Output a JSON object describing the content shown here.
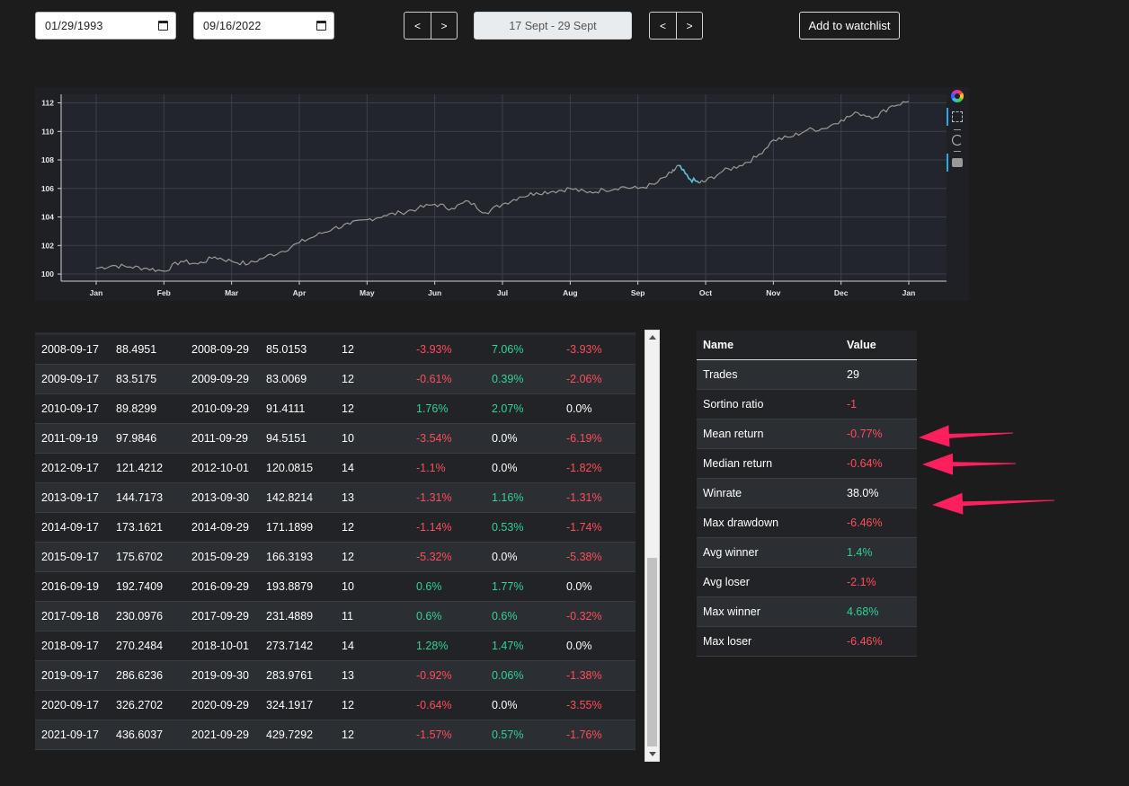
{
  "controls": {
    "start_date": "01/29/1993",
    "end_date": "09/16/2022",
    "prev_label": "<",
    "next_label": ">",
    "range_text": "17 Sept  -  29 Sept",
    "watchlist_label": "Add to watchlist"
  },
  "colors": {
    "positive": "#32d296",
    "negative": "#ff4d5a",
    "line": "#9a9a9a",
    "highlight": "#5bc0de"
  },
  "chart_data": {
    "type": "line",
    "title": "",
    "xlabel": "",
    "ylabel": "",
    "x_ticks": [
      "Jan",
      "Feb",
      "Mar",
      "Apr",
      "May",
      "Jun",
      "Jul",
      "Aug",
      "Sep",
      "Oct",
      "Nov",
      "Dec",
      "Jan"
    ],
    "y_ticks": [
      100,
      102,
      104,
      106,
      108,
      110,
      112
    ],
    "ylim": [
      99.5,
      112.6
    ],
    "grid": true,
    "series": [
      {
        "x_month": [
          0,
          0.25,
          0.5,
          0.75,
          1.0,
          1.25,
          1.5,
          1.75,
          2.0,
          2.25,
          2.5,
          2.75,
          3.0,
          3.25,
          3.5,
          3.75,
          4.0,
          4.25,
          4.5,
          4.75,
          5.0,
          5.25,
          5.5,
          5.75,
          6.0,
          6.25,
          6.5,
          6.75,
          7.0,
          7.25,
          7.5,
          7.75,
          8.0,
          8.25,
          8.5,
          8.6,
          8.75,
          8.9,
          9.0,
          9.25,
          9.5,
          9.75,
          10.0,
          10.25,
          10.5,
          10.75,
          11.0,
          11.25,
          11.5,
          11.75,
          12.0
        ],
        "values": [
          100.4,
          100.6,
          100.5,
          100.4,
          100.2,
          100.9,
          100.7,
          101.2,
          100.9,
          100.7,
          101.2,
          101.6,
          102.2,
          102.7,
          103.2,
          103.5,
          103.8,
          104.1,
          104.3,
          104.6,
          104.9,
          104.6,
          105.1,
          104.3,
          104.9,
          105.4,
          105.7,
          105.8,
          106.0,
          105.7,
          105.9,
          106.1,
          106.0,
          106.3,
          107.1,
          107.6,
          106.7,
          106.4,
          106.5,
          107.2,
          107.6,
          108.2,
          109.4,
          109.6,
          110.1,
          110.2,
          110.8,
          111.3,
          111.0,
          111.8,
          112.1
        ]
      }
    ],
    "highlight_range_month": [
      8.6,
      8.9
    ]
  },
  "trades": [
    {
      "entry_date": "2008-09-17",
      "entry_price": "88.4951",
      "exit_date": "2008-09-29",
      "exit_price": "85.0153",
      "days": "12",
      "ret": "-3.93%",
      "ret_sign": "neg",
      "max": "7.06%",
      "max_sign": "pos",
      "min": "-3.93%",
      "min_sign": "neg"
    },
    {
      "entry_date": "2009-09-17",
      "entry_price": "83.5175",
      "exit_date": "2009-09-29",
      "exit_price": "83.0069",
      "days": "12",
      "ret": "-0.61%",
      "ret_sign": "neg",
      "max": "0.39%",
      "max_sign": "pos",
      "min": "-2.06%",
      "min_sign": "neg"
    },
    {
      "entry_date": "2010-09-17",
      "entry_price": "89.8299",
      "exit_date": "2010-09-29",
      "exit_price": "91.4111",
      "days": "12",
      "ret": "1.76%",
      "ret_sign": "pos",
      "max": "2.07%",
      "max_sign": "pos",
      "min": "0.0%",
      "min_sign": "zero"
    },
    {
      "entry_date": "2011-09-19",
      "entry_price": "97.9846",
      "exit_date": "2011-09-29",
      "exit_price": "94.5151",
      "days": "10",
      "ret": "-3.54%",
      "ret_sign": "neg",
      "max": "0.0%",
      "max_sign": "zero",
      "min": "-6.19%",
      "min_sign": "neg"
    },
    {
      "entry_date": "2012-09-17",
      "entry_price": "121.4212",
      "exit_date": "2012-10-01",
      "exit_price": "120.0815",
      "days": "14",
      "ret": "-1.1%",
      "ret_sign": "neg",
      "max": "0.0%",
      "max_sign": "zero",
      "min": "-1.82%",
      "min_sign": "neg"
    },
    {
      "entry_date": "2013-09-17",
      "entry_price": "144.7173",
      "exit_date": "2013-09-30",
      "exit_price": "142.8214",
      "days": "13",
      "ret": "-1.31%",
      "ret_sign": "neg",
      "max": "1.16%",
      "max_sign": "pos",
      "min": "-1.31%",
      "min_sign": "neg"
    },
    {
      "entry_date": "2014-09-17",
      "entry_price": "173.1621",
      "exit_date": "2014-09-29",
      "exit_price": "171.1899",
      "days": "12",
      "ret": "-1.14%",
      "ret_sign": "neg",
      "max": "0.53%",
      "max_sign": "pos",
      "min": "-1.74%",
      "min_sign": "neg"
    },
    {
      "entry_date": "2015-09-17",
      "entry_price": "175.6702",
      "exit_date": "2015-09-29",
      "exit_price": "166.3193",
      "days": "12",
      "ret": "-5.32%",
      "ret_sign": "neg",
      "max": "0.0%",
      "max_sign": "zero",
      "min": "-5.38%",
      "min_sign": "neg"
    },
    {
      "entry_date": "2016-09-19",
      "entry_price": "192.7409",
      "exit_date": "2016-09-29",
      "exit_price": "193.8879",
      "days": "10",
      "ret": "0.6%",
      "ret_sign": "pos",
      "max": "1.77%",
      "max_sign": "pos",
      "min": "0.0%",
      "min_sign": "zero"
    },
    {
      "entry_date": "2017-09-18",
      "entry_price": "230.0976",
      "exit_date": "2017-09-29",
      "exit_price": "231.4889",
      "days": "11",
      "ret": "0.6%",
      "ret_sign": "pos",
      "max": "0.6%",
      "max_sign": "pos",
      "min": "-0.32%",
      "min_sign": "neg"
    },
    {
      "entry_date": "2018-09-17",
      "entry_price": "270.2484",
      "exit_date": "2018-10-01",
      "exit_price": "273.7142",
      "days": "14",
      "ret": "1.28%",
      "ret_sign": "pos",
      "max": "1.47%",
      "max_sign": "pos",
      "min": "0.0%",
      "min_sign": "zero"
    },
    {
      "entry_date": "2019-09-17",
      "entry_price": "286.6236",
      "exit_date": "2019-09-30",
      "exit_price": "283.9761",
      "days": "13",
      "ret": "-0.92%",
      "ret_sign": "neg",
      "max": "0.06%",
      "max_sign": "pos",
      "min": "-1.38%",
      "min_sign": "neg"
    },
    {
      "entry_date": "2020-09-17",
      "entry_price": "326.2702",
      "exit_date": "2020-09-29",
      "exit_price": "324.1917",
      "days": "12",
      "ret": "-0.64%",
      "ret_sign": "neg",
      "max": "0.0%",
      "max_sign": "zero",
      "min": "-3.55%",
      "min_sign": "neg"
    },
    {
      "entry_date": "2021-09-17",
      "entry_price": "436.6037",
      "exit_date": "2021-09-29",
      "exit_price": "429.7292",
      "days": "12",
      "ret": "-1.57%",
      "ret_sign": "neg",
      "max": "0.57%",
      "max_sign": "pos",
      "min": "-1.76%",
      "min_sign": "neg"
    }
  ],
  "stats": {
    "header_name": "Name",
    "header_value": "Value",
    "rows": [
      {
        "name": "Trades",
        "value": "29",
        "sign": "zero"
      },
      {
        "name": "Sortino ratio",
        "value": "-1",
        "sign": "neg"
      },
      {
        "name": "Mean return",
        "value": "-0.77%",
        "sign": "neg"
      },
      {
        "name": "Median return",
        "value": "-0.64%",
        "sign": "neg"
      },
      {
        "name": "Winrate",
        "value": "38.0%",
        "sign": "zero"
      },
      {
        "name": "Max drawdown",
        "value": "-6.46%",
        "sign": "neg"
      },
      {
        "name": "Avg winner",
        "value": "1.4%",
        "sign": "pos"
      },
      {
        "name": "Avg loser",
        "value": "-2.1%",
        "sign": "neg"
      },
      {
        "name": "Max winner",
        "value": "4.68%",
        "sign": "pos"
      },
      {
        "name": "Max loser",
        "value": "-6.46%",
        "sign": "neg"
      }
    ]
  },
  "annotations": {
    "arrow_color": "#ff1f5e"
  }
}
